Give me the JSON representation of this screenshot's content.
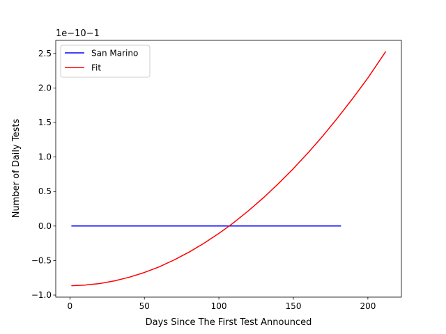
{
  "chart_data": {
    "type": "line",
    "xlabel": "Days Since The First Test Announced",
    "ylabel": "Number of Daily Tests",
    "y_offset_label": "1e−10−1",
    "xlim": [
      -9.5,
      222.5
    ],
    "ylim": [
      -1.03,
      2.69
    ],
    "x_ticks": [
      0,
      50,
      100,
      150,
      200
    ],
    "x_tick_labels": [
      "0",
      "50",
      "100",
      "150",
      "200"
    ],
    "y_ticks": [
      -1.0,
      -0.5,
      0.0,
      0.5,
      1.0,
      1.5,
      2.0,
      2.5
    ],
    "y_tick_labels": [
      "−1.0",
      "−0.5",
      "0.0",
      "0.5",
      "1.0",
      "1.5",
      "2.0",
      "2.5"
    ],
    "grid": false,
    "legend": "upper-left",
    "series": [
      {
        "name": "San Marino",
        "color": "#0000ff",
        "x": [
          1,
          182
        ],
        "y": [
          0.0,
          0.0
        ]
      },
      {
        "name": "Fit",
        "color": "#ff0000",
        "x": [
          1,
          10,
          20,
          30,
          40,
          50,
          60,
          70,
          80,
          90,
          100,
          105,
          110,
          120,
          130,
          140,
          150,
          160,
          170,
          180,
          190,
          200,
          212
        ],
        "y": [
          -0.865,
          -0.856,
          -0.833,
          -0.794,
          -0.741,
          -0.673,
          -0.59,
          -0.491,
          -0.378,
          -0.25,
          -0.107,
          -0.03,
          0.051,
          0.224,
          0.412,
          0.615,
          0.832,
          1.065,
          1.312,
          1.575,
          1.853,
          2.145,
          2.53
        ]
      }
    ]
  }
}
